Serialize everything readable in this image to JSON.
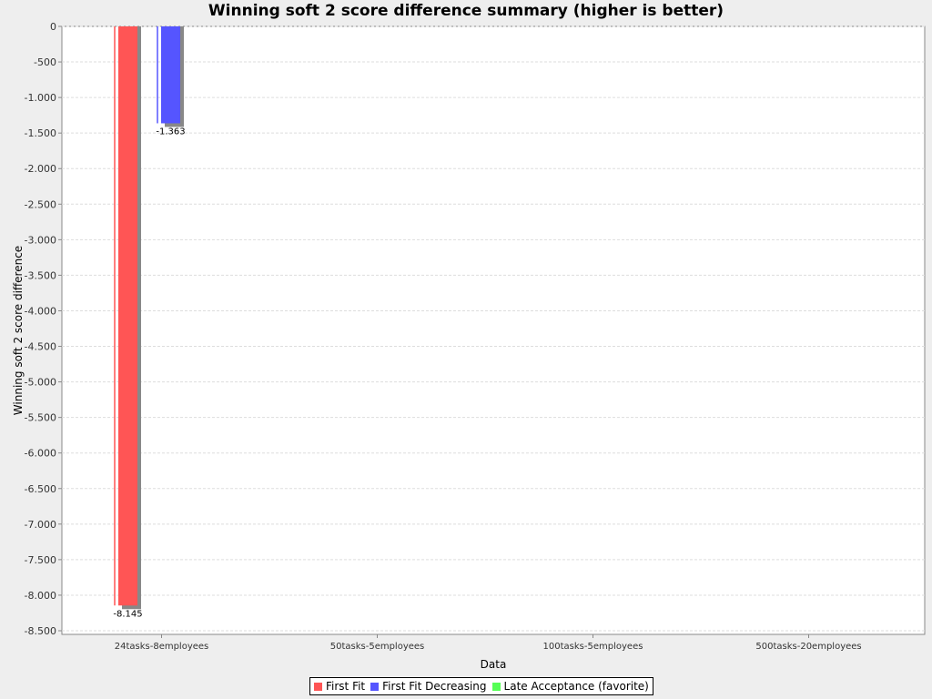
{
  "chart_data": {
    "type": "bar",
    "title": "Winning soft 2 score difference summary (higher is better)",
    "xlabel": "Data",
    "ylabel": "Winning soft 2 score difference",
    "categories": [
      "24tasks-8employees",
      "50tasks-5employees",
      "100tasks-5employees",
      "500tasks-20employees"
    ],
    "series": [
      {
        "name": "First Fit",
        "color": "#ff5555",
        "values": [
          -8145,
          null,
          null,
          null
        ],
        "labels": [
          "-8.145",
          "",
          "",
          ""
        ]
      },
      {
        "name": "First Fit Decreasing",
        "color": "#5555ff",
        "values": [
          -1363,
          null,
          null,
          null
        ],
        "labels": [
          "-1.363",
          "",
          "",
          ""
        ]
      },
      {
        "name": "Late Acceptance (favorite)",
        "color": "#55ff55",
        "values": [
          null,
          null,
          null,
          null
        ],
        "labels": [
          "",
          "",
          "",
          ""
        ]
      }
    ],
    "ylim": [
      -8500,
      0
    ],
    "yticks": [
      0,
      -500,
      -1000,
      -1500,
      -2000,
      -2500,
      -3000,
      -3500,
      -4000,
      -4500,
      -5000,
      -5500,
      -6000,
      -6500,
      -7000,
      -7500,
      -8000,
      -8500
    ],
    "ytick_labels": [
      "0",
      "-500",
      "-1.000",
      "-1.500",
      "-2.000",
      "-2.500",
      "-3.000",
      "-3.500",
      "-4.000",
      "-4.500",
      "-5.000",
      "-5.500",
      "-6.000",
      "-6.500",
      "-7.000",
      "-7.500",
      "-8.000",
      "-8.500"
    ],
    "grid": true,
    "legend_position": "bottom"
  }
}
